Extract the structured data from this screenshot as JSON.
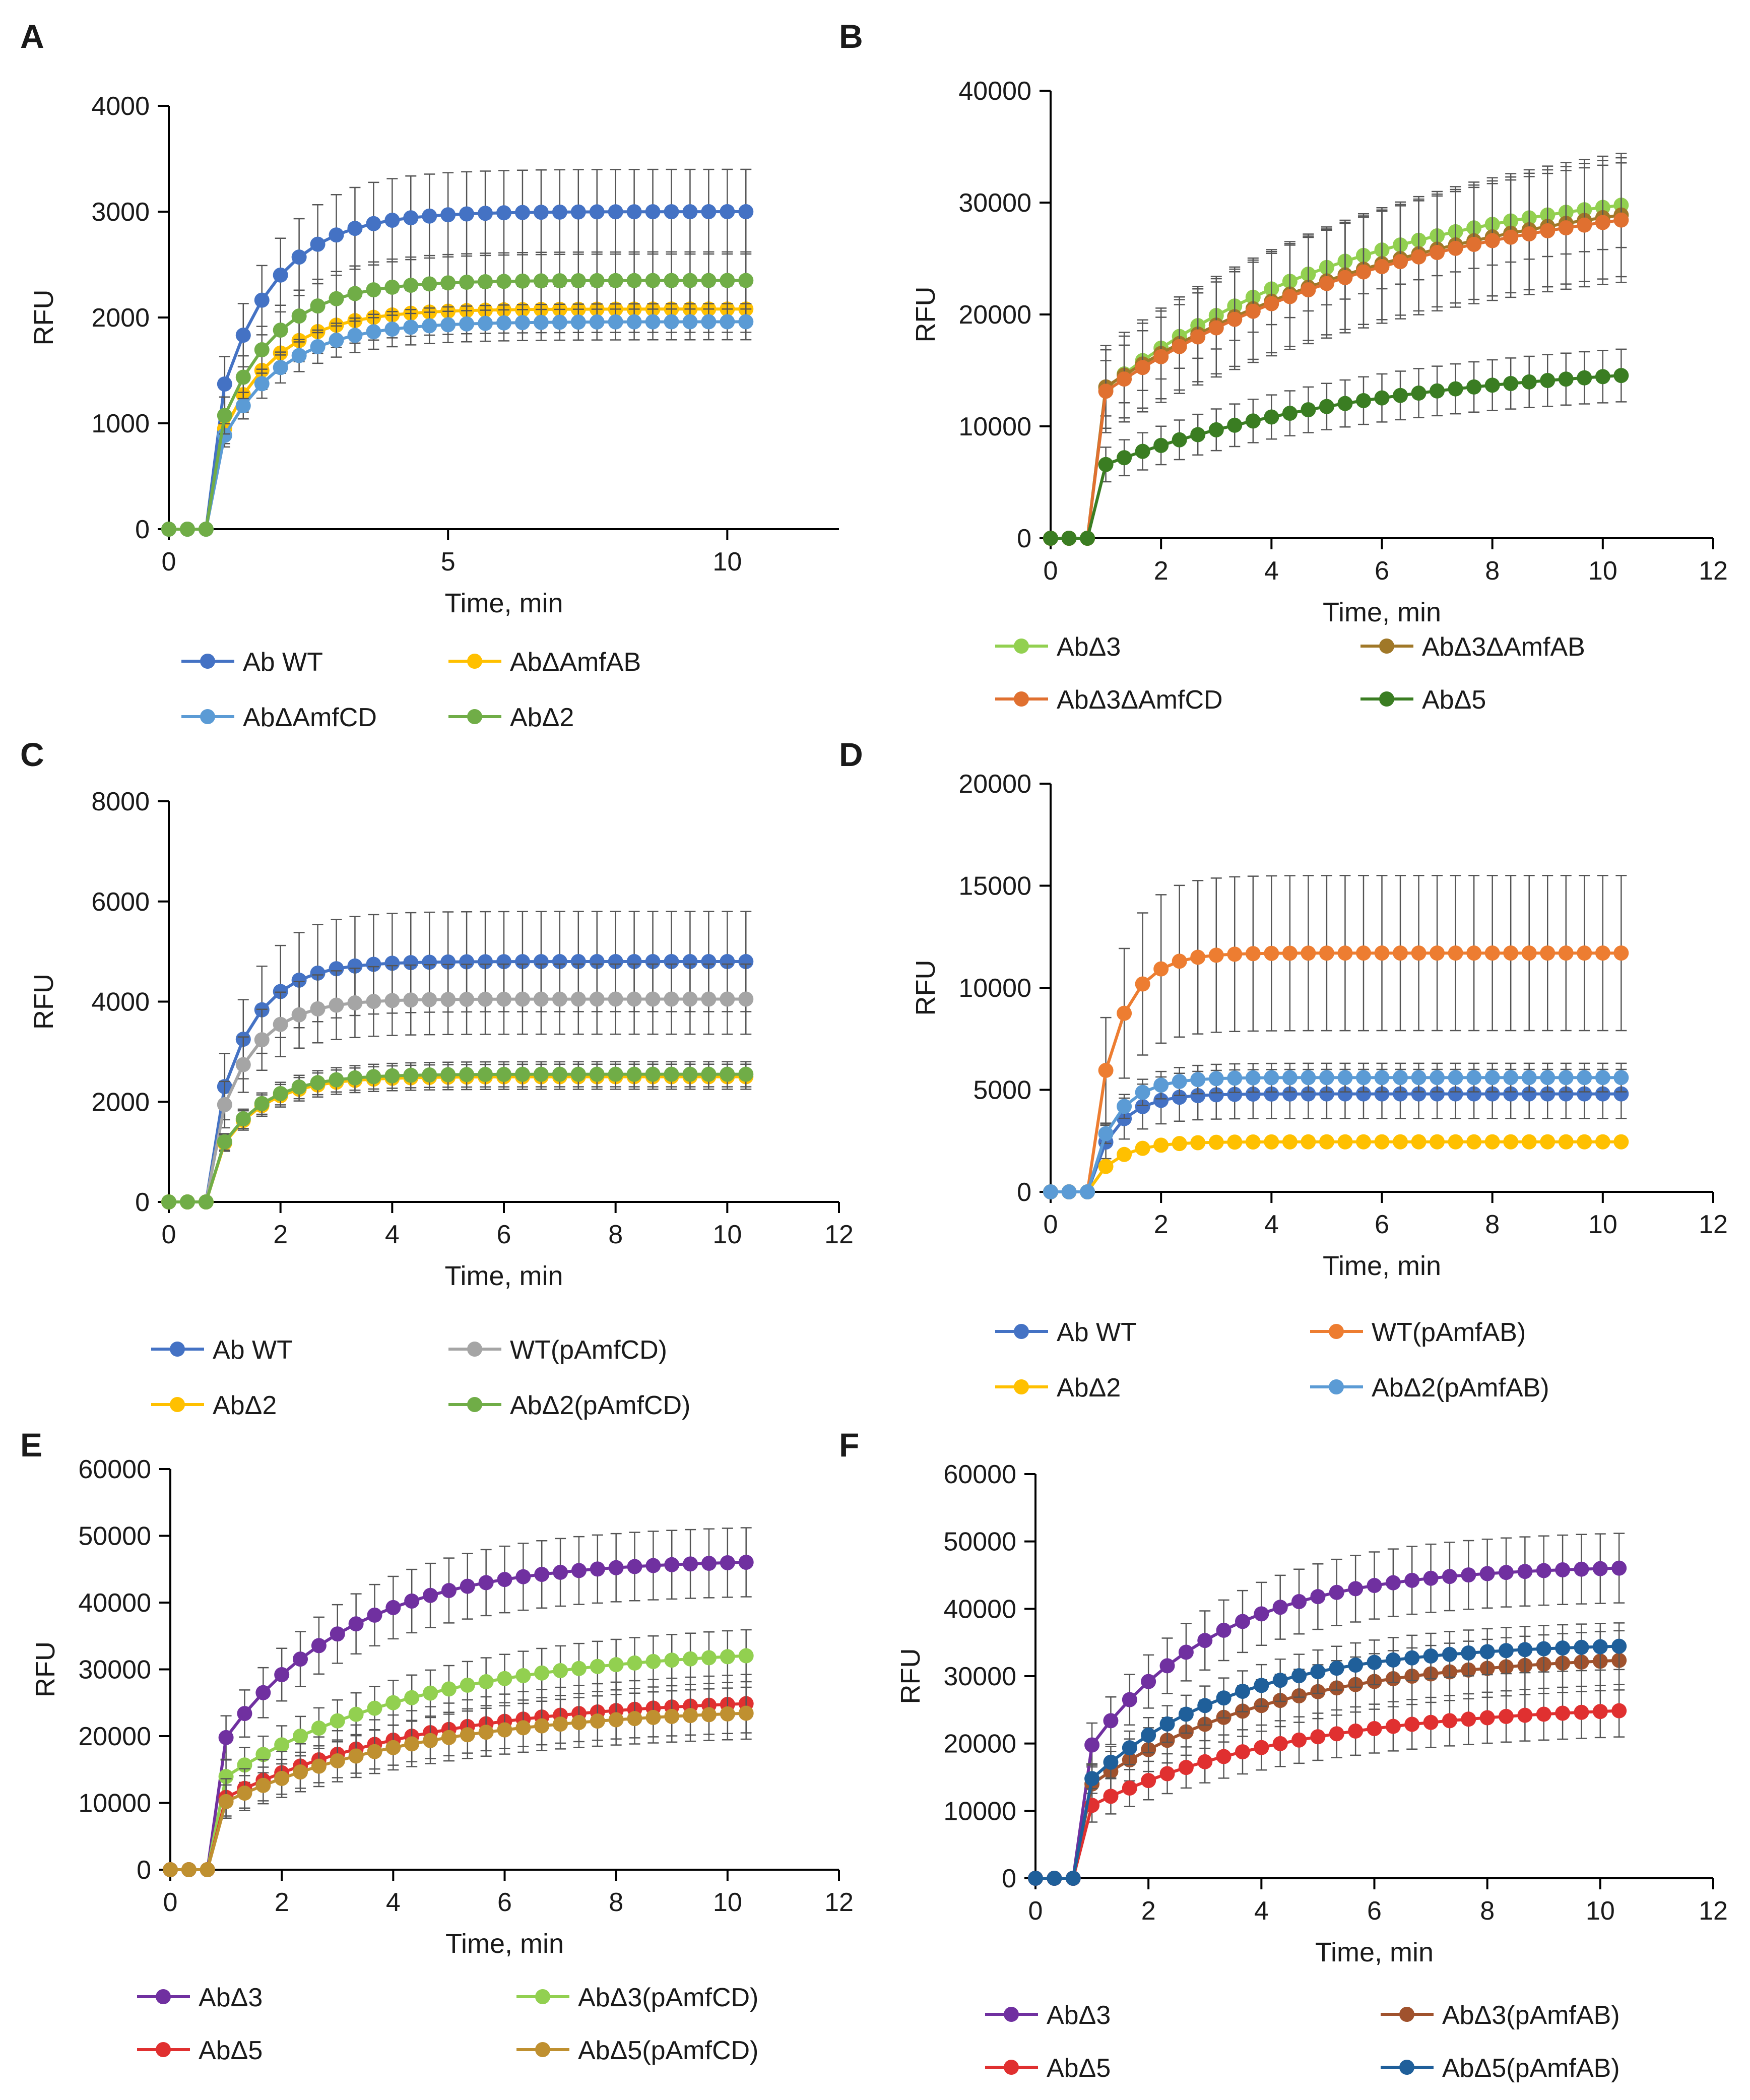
{
  "figure": {
    "panels": [
      {
        "letter": "A",
        "chart_data": {
          "type": "line",
          "title": "",
          "xlabel": "Time, min",
          "ylabel": "RFU",
          "xlim": [
            0,
            12
          ],
          "ylim": [
            0,
            4000
          ],
          "xticks": [
            0,
            5,
            10
          ],
          "yticks": [
            0,
            1000,
            2000,
            3000,
            4000
          ],
          "legend_position": "bottom",
          "series": [
            {
              "name": "Ab WT",
              "color": "#4472c4",
              "plateau": 3000,
              "tau": 1.0,
              "final_error": 400
            },
            {
              "name": "AbΔAmfAB",
              "color": "#ffc000",
              "plateau": 2080,
              "tau": 1.0,
              "final_error": 220
            },
            {
              "name": "AbΔAmfCD",
              "color": "#5b9bd5",
              "plateau": 1960,
              "tau": 1.1,
              "final_error": 170
            },
            {
              "name": "AbΔ2",
              "color": "#70ad47",
              "plateau": 2350,
              "tau": 1.0,
              "final_error": 270
            }
          ]
        }
      },
      {
        "letter": "B",
        "chart_data": {
          "type": "line",
          "title": "",
          "xlabel": "Time, min",
          "ylabel": "RFU",
          "xlim": [
            0,
            12
          ],
          "ylim": [
            0,
            40000
          ],
          "xticks": [
            0,
            2,
            4,
            6,
            8,
            10,
            12
          ],
          "yticks": [
            0,
            10000,
            20000,
            30000,
            40000
          ],
          "legend_position": "bottom",
          "series": [
            {
              "name": "AbΔ3",
              "color": "#92d050",
              "plateau": 32500,
              "tau": 4.8,
              "final_error": 4000
            },
            {
              "name": "AbΔ3ΔAmfAB",
              "color": "#a07828",
              "plateau": 33000,
              "tau": 6.0,
              "final_error": 6000
            },
            {
              "name": "AbΔ3ΔAmfCD",
              "color": "#e07030",
              "plateau": 32000,
              "tau": 5.6,
              "final_error": 6000
            },
            {
              "name": "AbΔ5",
              "color": "#3a7d22",
              "plateau": 16000,
              "tau": 5.0,
              "final_error": 2500
            }
          ]
        }
      },
      {
        "letter": "C",
        "chart_data": {
          "type": "line",
          "title": "",
          "xlabel": "Time, min",
          "ylabel": "RFU",
          "xlim": [
            0,
            12
          ],
          "ylim": [
            0,
            8000
          ],
          "xticks": [
            0,
            2,
            4,
            6,
            8,
            10,
            12
          ],
          "yticks": [
            0,
            2000,
            4000,
            6000,
            8000
          ],
          "legend_position": "bottom",
          "series": [
            {
              "name": "Ab WT",
              "color": "#4472c4",
              "plateau": 4800,
              "tau": 0.7,
              "final_error": 1000
            },
            {
              "name": "WT(pAmfCD)",
              "color": "#a5a5a5",
              "plateau": 4050,
              "tau": 0.7,
              "final_error": 700
            },
            {
              "name": "AbΔ2",
              "color": "#ffc000",
              "plateau": 2500,
              "tau": 0.8,
              "final_error": 250
            },
            {
              "name": "AbΔ2(pAmfCD)",
              "color": "#70ad47",
              "plateau": 2550,
              "tau": 0.8,
              "final_error": 250
            }
          ]
        }
      },
      {
        "letter": "D",
        "chart_data": {
          "type": "line",
          "title": "",
          "xlabel": "Time, min",
          "ylabel": "RFU",
          "xlim": [
            0,
            12
          ],
          "ylim": [
            0,
            20000
          ],
          "xticks": [
            0,
            2,
            4,
            6,
            8,
            10,
            12
          ],
          "yticks": [
            0,
            5000,
            10000,
            15000,
            20000
          ],
          "legend_position": "bottom",
          "series": [
            {
              "name": "Ab WT",
              "color": "#4472c4",
              "plateau": 4800,
              "tau": 0.5,
              "final_error": 1200
            },
            {
              "name": "WT(pAmfAB)",
              "color": "#ed7d31",
              "plateau": 11700,
              "tau": 0.5,
              "final_error": 3800
            },
            {
              "name": "AbΔ2",
              "color": "#ffc000",
              "plateau": 2450,
              "tau": 0.5,
              "final_error": 200
            },
            {
              "name": "AbΔ2(pAmfAB)",
              "color": "#5b9bd5",
              "plateau": 5600,
              "tau": 0.5,
              "final_error": 700
            }
          ]
        }
      },
      {
        "letter": "E",
        "chart_data": {
          "type": "line",
          "title": "",
          "xlabel": "Time, min",
          "ylabel": "RFU",
          "xlim": [
            0,
            12
          ],
          "ylim": [
            0,
            60000
          ],
          "xticks": [
            0,
            2,
            4,
            6,
            8,
            10,
            12
          ],
          "yticks": [
            0,
            10000,
            20000,
            30000,
            40000,
            50000,
            60000
          ],
          "legend_position": "bottom",
          "series": [
            {
              "name": "AbΔ3",
              "color": "#7030a0",
              "plateau": 46500,
              "tau": 2.3,
              "final_error": 5200
            },
            {
              "name": "AbΔ3(pAmfCD)",
              "color": "#92d050",
              "plateau": 33500,
              "tau": 3.6,
              "final_error": 4000
            },
            {
              "name": "AbΔ5",
              "color": "#e03030",
              "plateau": 26000,
              "tau": 3.6,
              "final_error": 4500
            },
            {
              "name": "AbΔ5(pAmfCD)",
              "color": "#bf9030",
              "plateau": 24500,
              "tau": 3.6,
              "final_error": 4000
            }
          ]
        }
      },
      {
        "letter": "F",
        "chart_data": {
          "type": "line",
          "title": "",
          "xlabel": "Time, min",
          "ylabel": "RFU",
          "xlim": [
            0,
            12
          ],
          "ylim": [
            0,
            60000
          ],
          "xticks": [
            0,
            2,
            4,
            6,
            8,
            10,
            12
          ],
          "yticks": [
            0,
            10000,
            20000,
            30000,
            40000,
            50000,
            60000
          ],
          "legend_position": "bottom",
          "series": [
            {
              "name": "AbΔ3",
              "color": "#7030a0",
              "plateau": 46500,
              "tau": 2.3,
              "final_error": 5200
            },
            {
              "name": "AbΔ3(pAmfAB)",
              "color": "#a0522d",
              "plateau": 33500,
              "tau": 3.3,
              "final_error": 4500
            },
            {
              "name": "AbΔ5",
              "color": "#e03030",
              "plateau": 26000,
              "tau": 3.6,
              "final_error": 4000
            },
            {
              "name": "AbΔ5(pAmfAB)",
              "color": "#1f5f9a",
              "plateau": 35000,
              "tau": 2.6,
              "final_error": 3500
            }
          ]
        }
      }
    ]
  }
}
